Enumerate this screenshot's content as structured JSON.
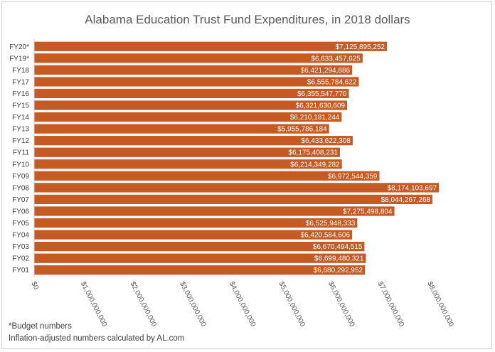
{
  "chart_data": {
    "type": "bar",
    "orientation": "horizontal",
    "title": "Alabama Education Trust Fund Expenditures, in 2018 dollars",
    "categories": [
      "FY20*",
      "FY19*",
      "FY18",
      "FY17",
      "FY16",
      "FY15",
      "FY14",
      "FY13",
      "FY12",
      "FY11",
      "FY10",
      "FY09",
      "FY08",
      "FY07",
      "FY06",
      "FY05",
      "FY04",
      "FY03",
      "FY02",
      "FY01"
    ],
    "values": [
      7125895252,
      6633457625,
      6421294886,
      6555784622,
      6355547770,
      6321630609,
      6210181244,
      5955786184,
      6433622308,
      6175408231,
      6214349282,
      6972544359,
      8174103697,
      8044267268,
      7275498804,
      6525948333,
      6420584606,
      6670494515,
      6699480321,
      6680292952
    ],
    "value_labels": [
      "$7,125,895,252",
      "$6,633,457,625",
      "$6,421,294,886",
      "$6,555,784,622",
      "$6,355,547,770",
      "$6,321,630,609",
      "$6,210,181,244",
      "$5,955,786,184",
      "$6,433,622,308",
      "$6,175,408,231",
      "$6,214,349,282",
      "$6,972,544,359",
      "$8,174,103,697",
      "$8,044,267,268",
      "$7,275,498,804",
      "$6,525,948,333",
      "$6,420,584,606",
      "$6,670,494,515",
      "$6,699,480,321",
      "$6,680,292,952"
    ],
    "xlim": [
      0,
      8000000000
    ],
    "x_ticks": [
      0,
      1000000000,
      2000000000,
      3000000000,
      4000000000,
      5000000000,
      6000000000,
      7000000000,
      8000000000
    ],
    "x_tick_labels": [
      "$0",
      "$1,000,000,000",
      "$2,000,000,000",
      "$3,000,000,000",
      "$4,000,000,000",
      "$5,000,000,000",
      "$6,000,000,000",
      "$7,000,000,000",
      "$8,000,000,000"
    ],
    "bar_color": "#c55a22",
    "grid": false,
    "legend": "none"
  },
  "footnotes": {
    "budget_note": "*Budget numbers",
    "source_note": "Inflation-adjusted numbers calculated by AL.com"
  }
}
